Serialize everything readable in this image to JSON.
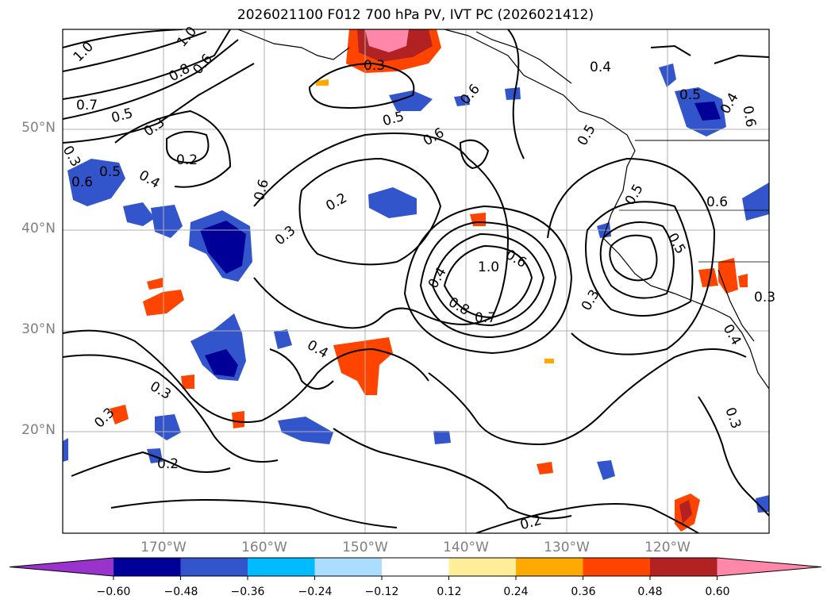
{
  "title": "2026021100 F012 700 hPa PV, IVT PC (2026021412)",
  "lat_labels": [
    "50°N",
    "40°N",
    "30°N",
    "20°N"
  ],
  "lon_labels": [
    "170°W",
    "160°W",
    "150°W",
    "140°W",
    "130°W",
    "120°W"
  ],
  "contour_labels": [
    "1.0",
    "1.0",
    "0.8",
    "0.6",
    "0.7",
    "0.5",
    "0.3",
    "0.2",
    "0.3",
    "0.5",
    "0.6",
    "0.6",
    "0.5",
    "0.4",
    "0.6",
    "0.6",
    "0.3",
    "0.2",
    "0.4",
    "0.4",
    "0.7",
    "0.8",
    "0.6",
    "1.0",
    "0.4",
    "0.5",
    "0.5",
    "0.4",
    "0.3",
    "0.6",
    "0.5",
    "0.6",
    "0.3",
    "0.3",
    "0.2",
    "0.3",
    "0.4",
    "0.3",
    "0.2",
    "0.3",
    "0.5"
  ],
  "colorbar": {
    "ticks": [
      "−0.60",
      "−0.48",
      "−0.36",
      "−0.24",
      "−0.12",
      "0.12",
      "0.24",
      "0.36",
      "0.48",
      "0.60"
    ],
    "colors": [
      "#9933cc",
      "#000099",
      "#3355cc",
      "#00bbff",
      "#aaddff",
      "#ffffff",
      "#ffee99",
      "#ffaa00",
      "#ff4400",
      "#b22222",
      "#ff88aa"
    ]
  }
}
